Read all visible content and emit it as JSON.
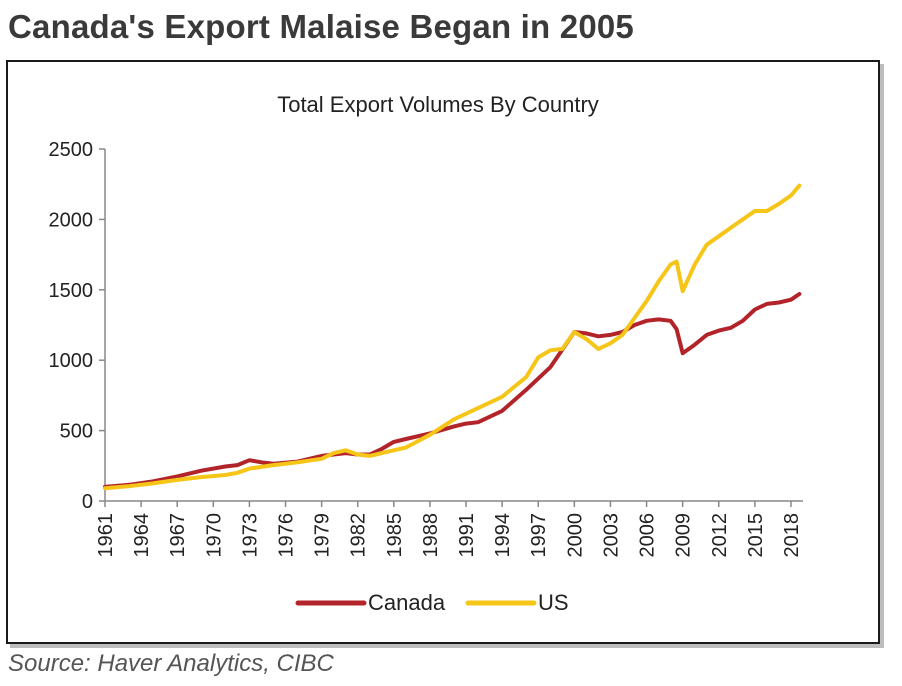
{
  "headline": "Canada's Export Malaise Began in 2005",
  "source": "Source: Haver Analytics, CIBC",
  "colors": {
    "canada": "#b3242a",
    "us": "#f5c518",
    "axis": "#888888",
    "text": "#222222"
  },
  "chart_data": {
    "type": "line",
    "title": "Total Export Volumes By Country",
    "xlabel": "",
    "ylabel": "",
    "xlim": [
      1961,
      2019
    ],
    "ylim": [
      0,
      2500
    ],
    "yticks": [
      0,
      500,
      1000,
      1500,
      2000,
      2500
    ],
    "xticks": [
      1961,
      1964,
      1967,
      1970,
      1973,
      1976,
      1979,
      1982,
      1985,
      1988,
      1991,
      1994,
      1997,
      2000,
      2003,
      2006,
      2009,
      2012,
      2015,
      2018
    ],
    "grid": false,
    "legend": "bottom",
    "series": [
      {
        "name": "Canada",
        "color": "#b3242a",
        "x": [
          1961,
          1963,
          1965,
          1967,
          1969,
          1971,
          1972,
          1973,
          1974,
          1975,
          1977,
          1979,
          1981,
          1982,
          1983,
          1984,
          1985,
          1986,
          1988,
          1990,
          1991,
          1992,
          1994,
          1996,
          1998,
          2000,
          2001,
          2002,
          2003,
          2004,
          2005,
          2006,
          2007,
          2008,
          2008.5,
          2009,
          2010,
          2011,
          2012,
          2013,
          2014,
          2015,
          2016,
          2017,
          2018,
          2018.7
        ],
        "values": [
          100,
          115,
          140,
          175,
          215,
          245,
          255,
          290,
          275,
          265,
          280,
          320,
          340,
          330,
          330,
          370,
          420,
          440,
          480,
          530,
          550,
          560,
          640,
          790,
          950,
          1200,
          1190,
          1170,
          1180,
          1200,
          1250,
          1280,
          1290,
          1280,
          1220,
          1050,
          1110,
          1180,
          1210,
          1230,
          1280,
          1360,
          1400,
          1410,
          1430,
          1470
        ]
      },
      {
        "name": "US",
        "color": "#f5c518",
        "x": [
          1961,
          1963,
          1965,
          1967,
          1969,
          1971,
          1972,
          1973,
          1975,
          1977,
          1979,
          1980,
          1981,
          1982,
          1983,
          1984,
          1985,
          1986,
          1988,
          1990,
          1992,
          1994,
          1996,
          1997,
          1998,
          1999,
          2000,
          2001,
          2002,
          2003,
          2004,
          2005,
          2006,
          2007,
          2008,
          2008.5,
          2009,
          2010,
          2011,
          2012,
          2013,
          2014,
          2015,
          2016,
          2017,
          2018,
          2018.7
        ],
        "values": [
          90,
          105,
          125,
          150,
          170,
          185,
          200,
          230,
          255,
          275,
          300,
          340,
          360,
          330,
          320,
          340,
          360,
          380,
          470,
          580,
          660,
          740,
          880,
          1020,
          1070,
          1080,
          1200,
          1150,
          1080,
          1120,
          1180,
          1300,
          1420,
          1560,
          1680,
          1700,
          1490,
          1680,
          1820,
          1880,
          1940,
          2000,
          2060,
          2060,
          2110,
          2170,
          2240
        ]
      }
    ]
  }
}
